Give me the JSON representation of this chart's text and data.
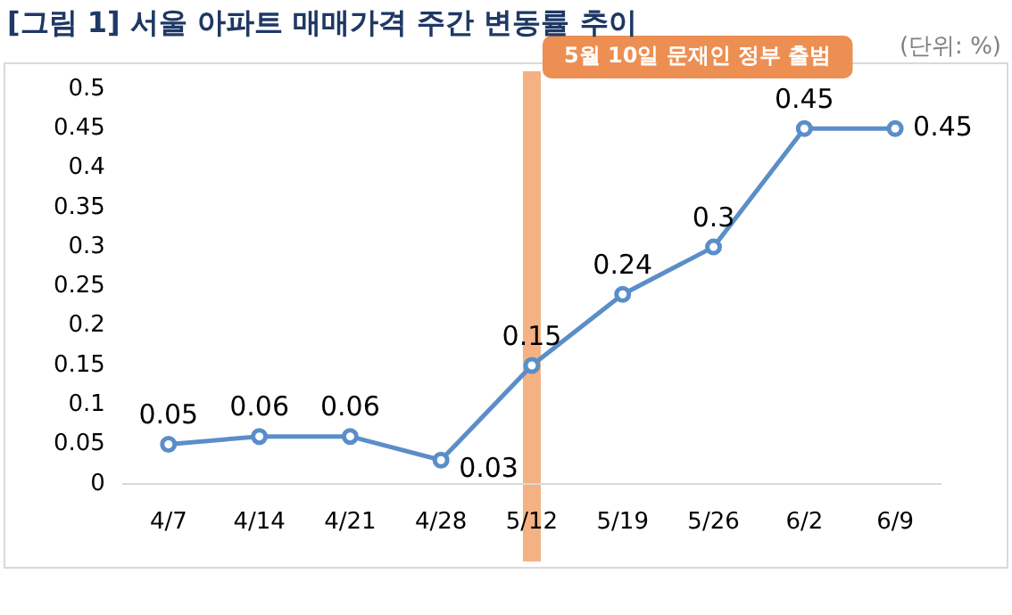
{
  "chart_data": {
    "type": "line",
    "title": "[그림 1] 서울 아파트 매매가격 주간 변동률 추이",
    "annotations": [
      "(단위: %)"
    ],
    "categories": [
      "4/7",
      "4/14",
      "4/21",
      "4/28",
      "5/12",
      "5/19",
      "5/26",
      "6/2",
      "6/9"
    ],
    "series": [
      {
        "color": "#5b8ec8",
        "values": [
          0.05,
          0.06,
          0.06,
          0.03,
          0.15,
          0.24,
          0.3,
          0.45,
          0.45
        ]
      }
    ],
    "ylim": [
      0,
      0.5
    ],
    "yticks": [
      0,
      0.05,
      0.1,
      0.15,
      0.2,
      0.25,
      0.3,
      0.35,
      0.4,
      0.45,
      0.5
    ],
    "ref_lines": [
      {
        "axis": "x",
        "value": "5/12",
        "label": "5월 10일 문재인 정부 출범",
        "color": "#f4b183"
      }
    ],
    "data_labels": true,
    "marker": "circle",
    "grid": false,
    "legend": false
  }
}
